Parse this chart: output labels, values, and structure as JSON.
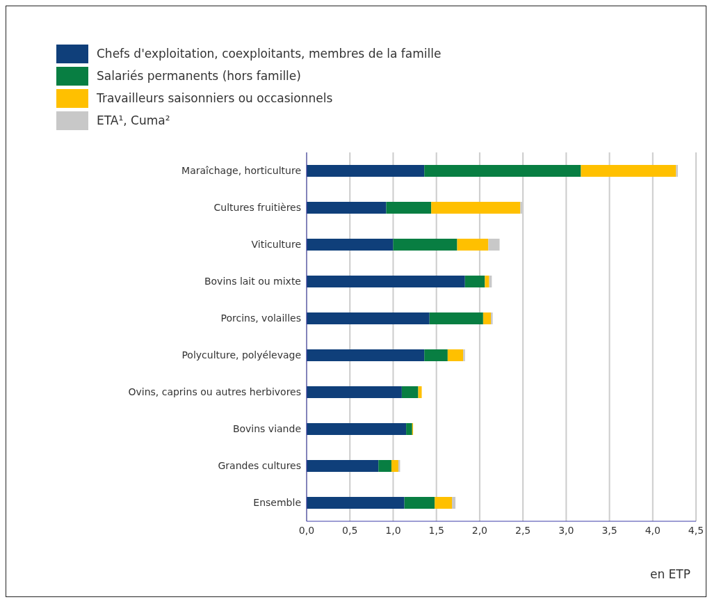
{
  "chart_data": {
    "type": "bar",
    "orientation": "horizontal",
    "stacked": true,
    "xlabel": "en ETP",
    "categories": [
      "Maraîchage, horticulture",
      "Cultures fruitières",
      "Viticulture",
      "Bovins lait ou mixte",
      "Porcins, volailles",
      "Polyculture, polyélevage",
      "Ovins, caprins ou autres herbivores",
      "Bovins viande",
      "Grandes cultures",
      "Ensemble"
    ],
    "series": [
      {
        "name": "Chefs d'exploitation, coexploitants, membres de la famille",
        "color": "#0f3f7a",
        "values": [
          1.36,
          0.92,
          1.0,
          1.83,
          1.42,
          1.36,
          1.1,
          1.15,
          0.83,
          1.13
        ]
      },
      {
        "name": "Salariés permanents (hors famille)",
        "color": "#087e42",
        "values": [
          1.81,
          0.52,
          0.74,
          0.23,
          0.62,
          0.27,
          0.19,
          0.07,
          0.15,
          0.35
        ]
      },
      {
        "name": "Travailleurs saisonniers ou occasionnels",
        "color": "#ffc000",
        "values": [
          1.1,
          1.03,
          0.36,
          0.05,
          0.09,
          0.18,
          0.04,
          0.01,
          0.08,
          0.2
        ]
      },
      {
        "name": "ETA¹, Cuma²",
        "color": "#c8c8c8",
        "values": [
          0.02,
          0.02,
          0.13,
          0.03,
          0.02,
          0.02,
          null,
          null,
          0.02,
          0.04
        ]
      }
    ],
    "xlim": [
      0,
      4.5
    ],
    "xticks": [
      {
        "value": 0,
        "label": "0,0"
      },
      {
        "value": 0.5,
        "label": "0,5"
      },
      {
        "value": 1,
        "label": "1,0"
      },
      {
        "value": 1.5,
        "label": "1,5"
      },
      {
        "value": 2,
        "label": "2,0"
      },
      {
        "value": 2.5,
        "label": "2,5"
      },
      {
        "value": 3,
        "label": "3,0"
      },
      {
        "value": 3.5,
        "label": "3,5"
      },
      {
        "value": 4,
        "label": "4,0"
      },
      {
        "value": 4.5,
        "label": "4,5"
      }
    ],
    "grid": "x",
    "legend": "top left"
  }
}
